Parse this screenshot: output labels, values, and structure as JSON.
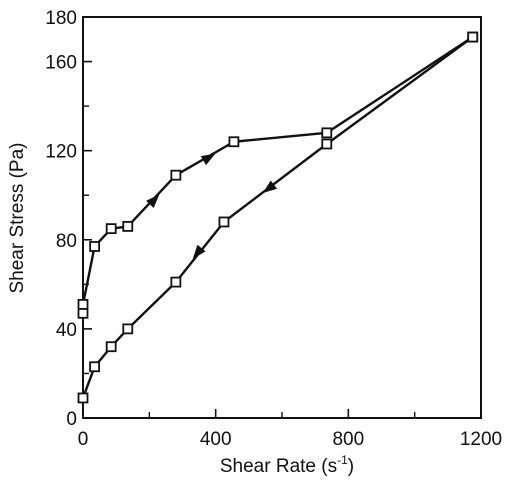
{
  "chart_data": {
    "type": "line",
    "title": "",
    "xlabel": "Shear Rate (s",
    "xlabel_sup": "-1",
    "xlabel_close": ")",
    "ylabel": "Shear Stress (Pa)",
    "xlim": [
      0,
      1200
    ],
    "ylim": [
      0,
      180
    ],
    "x_ticks": [
      0,
      400,
      800,
      1200
    ],
    "x_tick_labels": [
      "0",
      "400",
      "800",
      "1200"
    ],
    "x_minor_ticks": [
      200,
      600,
      1000
    ],
    "y_ticks": [
      0,
      40,
      80,
      120,
      160,
      180
    ],
    "y_tick_labels": [
      "0",
      "40",
      "80",
      "120",
      "160",
      "180"
    ],
    "y_minor_ticks": [
      20,
      60,
      100,
      140
    ],
    "grid": false,
    "legend": "none",
    "marker": "open-square",
    "color": "#111111",
    "series": [
      {
        "x": [
          0,
          0,
          35,
          85,
          135,
          280,
          455,
          735,
          1175
        ],
        "y": [
          47,
          51,
          77,
          85,
          86,
          109,
          124,
          128,
          171
        ],
        "arrows_at": [
          [
            215,
            98
          ],
          [
            380,
            117
          ]
        ]
      },
      {
        "x": [
          1175,
          735,
          425,
          280,
          135,
          85,
          35,
          0
        ],
        "y": [
          171,
          123,
          88,
          61,
          40,
          32,
          23,
          9
        ],
        "arrows_at": [
          [
            560,
            103
          ],
          [
            345,
            74
          ]
        ]
      }
    ]
  }
}
